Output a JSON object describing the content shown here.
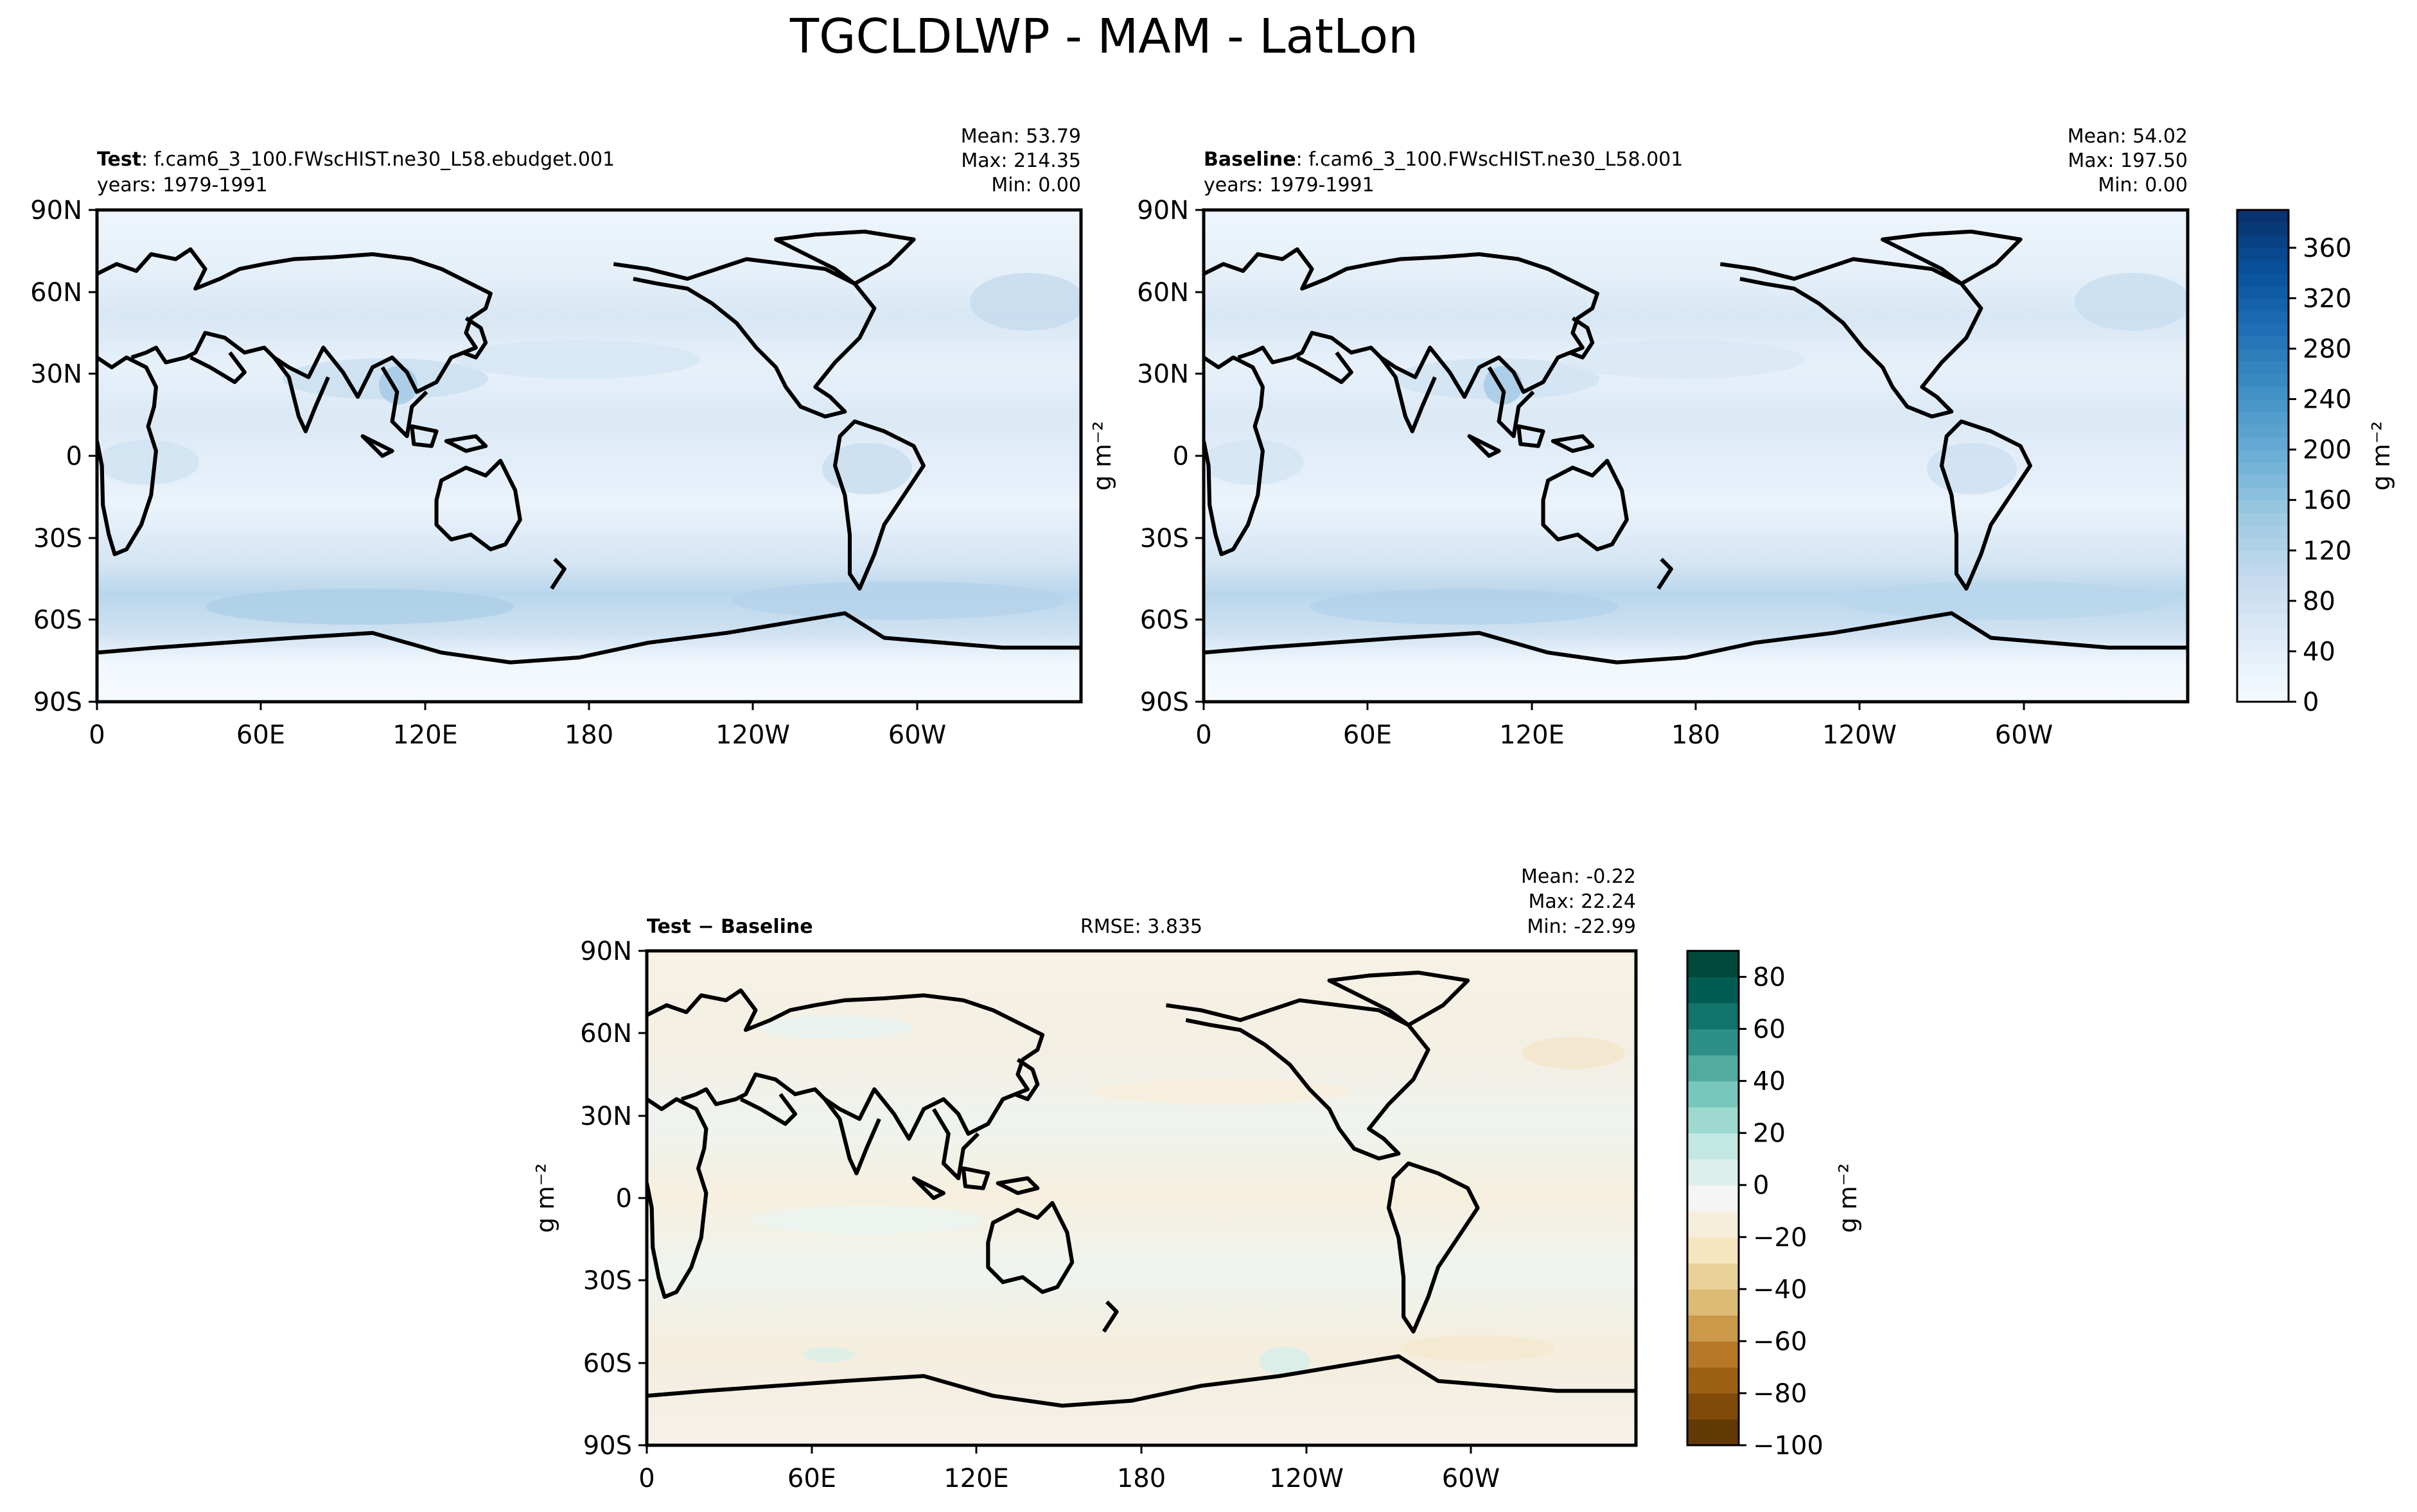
{
  "suptitle": "TGCLDLWP - MAM - LatLon",
  "lon_ticks": [
    "0",
    "60E",
    "120E",
    "180",
    "120W",
    "60W"
  ],
  "lat_ticks": [
    "90N",
    "60N",
    "30N",
    "0",
    "30S",
    "60S",
    "90S"
  ],
  "units": "g m⁻²",
  "panels": {
    "test": {
      "label_bold": "Test",
      "label_rest": ": f.cam6_3_100.FWscHIST.ne30_L58.ebudget.001",
      "years": "years: 1979-1991",
      "mean": "Mean: 53.79",
      "max": "Max: 214.35",
      "min": "Min:  0.00"
    },
    "baseline": {
      "label_bold": "Baseline",
      "label_rest": ": f.cam6_3_100.FWscHIST.ne30_L58.001",
      "years": "years: 1979-1991",
      "mean": "Mean: 54.02",
      "max": "Max: 197.50",
      "min": "Min:  0.00"
    },
    "diff": {
      "label_bold": "Test − Baseline",
      "rmse": "RMSE: 3.835",
      "mean": "Mean: -0.22",
      "max": "Max: 22.24",
      "min": "Min: -22.99"
    }
  },
  "colorbars": {
    "field": {
      "ticks": [
        "0",
        "40",
        "80",
        "120",
        "160",
        "200",
        "240",
        "280",
        "320",
        "360"
      ],
      "range": [
        0,
        390
      ],
      "colors": [
        "#f7fbff",
        "#deebf7",
        "#c6dbef",
        "#9ecae1",
        "#6baed6",
        "#4292c6",
        "#2171b5",
        "#08519c",
        "#08306b"
      ]
    },
    "diff": {
      "ticks": [
        "80",
        "60",
        "40",
        "20",
        "0",
        "−20",
        "−40",
        "−60",
        "−80",
        "−100"
      ],
      "range": [
        -100,
        90
      ],
      "colors": [
        "#543005",
        "#8c510a",
        "#bf812d",
        "#dfc27d",
        "#f6e8c3",
        "#f5f5f5",
        "#c7eae5",
        "#80cdc1",
        "#35978f",
        "#01665e",
        "#003c30"
      ]
    }
  },
  "chart_data": [
    {
      "type": "heatmap",
      "title": "Test",
      "variable": "TGCLDLWP",
      "units": "g m⁻²",
      "mean": 53.79,
      "max": 214.35,
      "min": 0.0,
      "clim": [
        0,
        390
      ],
      "xticks": [
        "0",
        "60E",
        "120E",
        "180",
        "120W",
        "60W"
      ],
      "yticks": [
        "90N",
        "60N",
        "30N",
        "0",
        "30S",
        "60S",
        "90S"
      ]
    },
    {
      "type": "heatmap",
      "title": "Baseline",
      "variable": "TGCLDLWP",
      "units": "g m⁻²",
      "mean": 54.02,
      "max": 197.5,
      "min": 0.0,
      "clim": [
        0,
        390
      ],
      "xticks": [
        "0",
        "60E",
        "120E",
        "180",
        "120W",
        "60W"
      ],
      "yticks": [
        "90N",
        "60N",
        "30N",
        "0",
        "30S",
        "60S",
        "90S"
      ]
    },
    {
      "type": "heatmap",
      "title": "Test − Baseline",
      "variable": "TGCLDLWP",
      "units": "g m⁻²",
      "rmse": 3.835,
      "mean": -0.22,
      "max": 22.24,
      "min": -22.99,
      "clim": [
        -100,
        90
      ],
      "xticks": [
        "0",
        "60E",
        "120E",
        "180",
        "120W",
        "60W"
      ],
      "yticks": [
        "90N",
        "60N",
        "30N",
        "0",
        "30S",
        "60S",
        "90S"
      ]
    }
  ]
}
